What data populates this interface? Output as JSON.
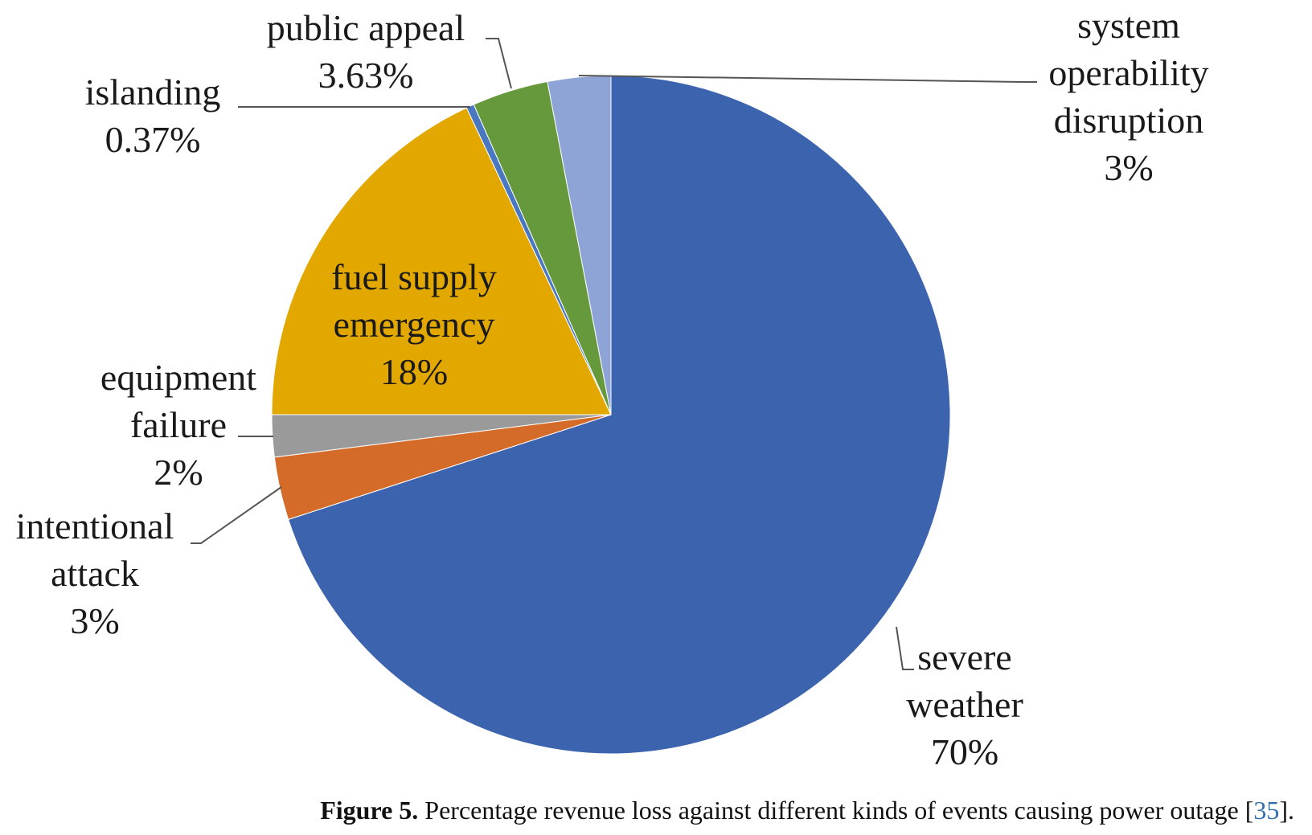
{
  "chart_data": {
    "type": "pie",
    "slices": [
      {
        "label": [
          "severe",
          "weather"
        ],
        "percent_label": "70%",
        "value": 70,
        "color": "#3c64ae"
      },
      {
        "label": [
          "intentional",
          "attack"
        ],
        "percent_label": "3%",
        "value": 3,
        "color": "#d46b28"
      },
      {
        "label": [
          "equipment",
          "failure"
        ],
        "percent_label": "2%",
        "value": 2,
        "color": "#9a9a9a"
      },
      {
        "label": [
          "fuel supply",
          "emergency"
        ],
        "percent_label": "18%",
        "value": 18,
        "color": "#e2a800"
      },
      {
        "label": [
          "islanding"
        ],
        "percent_label": "0.37%",
        "value": 0.37,
        "color": "#4a78c0"
      },
      {
        "label": [
          "public appeal"
        ],
        "percent_label": "3.63%",
        "value": 3.63,
        "color": "#66993b"
      },
      {
        "label": [
          "system",
          "operability",
          "disruption"
        ],
        "percent_label": "3%",
        "value": 3,
        "color": "#8fa4d6"
      }
    ]
  },
  "caption": {
    "figure_label": "Figure 5.",
    "text": " Percentage revenue loss against different kinds of events causing power outage [",
    "ref": "35",
    "end": "]."
  }
}
